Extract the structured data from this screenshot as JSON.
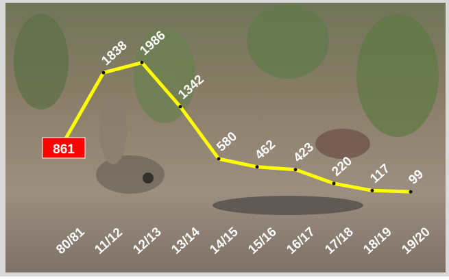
{
  "chart_data": {
    "type": "line",
    "categories": [
      "80/81",
      "11/12",
      "12/13",
      "13/14",
      "14/15",
      "15/16",
      "16/17",
      "17/18",
      "18/19",
      "19/20"
    ],
    "values": [
      861,
      1838,
      1986,
      1342,
      580,
      462,
      423,
      220,
      117,
      99
    ],
    "color": "#ffff00",
    "highlight_color": "#ff0000"
  }
}
